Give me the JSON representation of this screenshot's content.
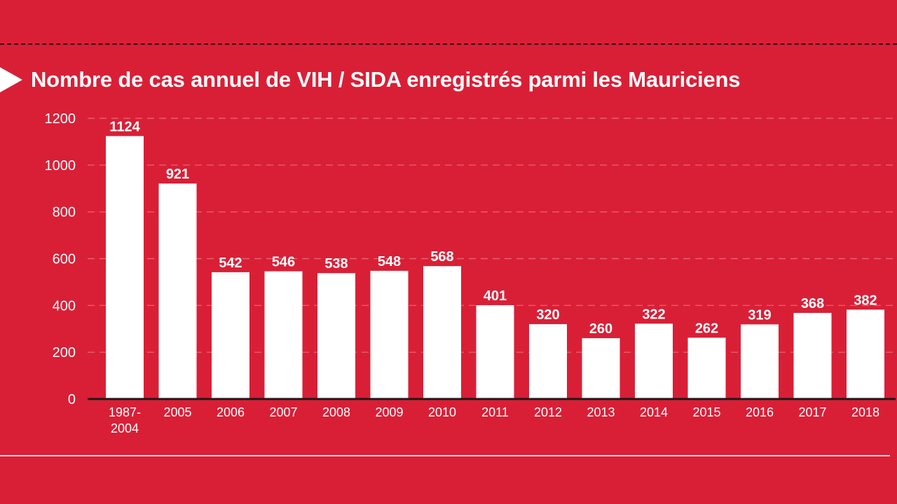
{
  "chart_data": {
    "type": "bar",
    "title": "Nombre de cas annuel de VIH / SIDA enregistrés parmi les Mauriciens",
    "categories": [
      "1987-2004",
      "2005",
      "2006",
      "2007",
      "2008",
      "2009",
      "2010",
      "2011",
      "2012",
      "2013",
      "2014",
      "2015",
      "2016",
      "2017",
      "2018"
    ],
    "category_lines": [
      [
        "1987-",
        "2004"
      ],
      [
        "2005"
      ],
      [
        "2006"
      ],
      [
        "2007"
      ],
      [
        "2008"
      ],
      [
        "2009"
      ],
      [
        "2010"
      ],
      [
        "2011"
      ],
      [
        "2012"
      ],
      [
        "2013"
      ],
      [
        "2014"
      ],
      [
        "2015"
      ],
      [
        "2016"
      ],
      [
        "2017"
      ],
      [
        "2018"
      ]
    ],
    "values": [
      1124,
      921,
      542,
      546,
      538,
      548,
      568,
      401,
      320,
      260,
      322,
      262,
      319,
      368,
      382
    ],
    "value_labels": [
      "1124",
      "921",
      "542",
      "546",
      "538",
      "548",
      "568",
      "401",
      "320",
      "260",
      "322",
      "262",
      "319",
      "368",
      "382"
    ],
    "yticks": [
      0,
      200,
      400,
      600,
      800,
      1000,
      1200
    ],
    "ytick_labels": [
      "0",
      "200",
      "400",
      "600",
      "800",
      "1000",
      "1200"
    ],
    "ylim": [
      0,
      1200
    ],
    "xlabel": "",
    "ylabel": "",
    "grid": true,
    "legend": "none"
  },
  "colors": {
    "background": "#d91f36",
    "bar": "#ffffff",
    "text": "#ffffff",
    "grid": "#ec6a79",
    "baseline": "#1a1a1a"
  }
}
